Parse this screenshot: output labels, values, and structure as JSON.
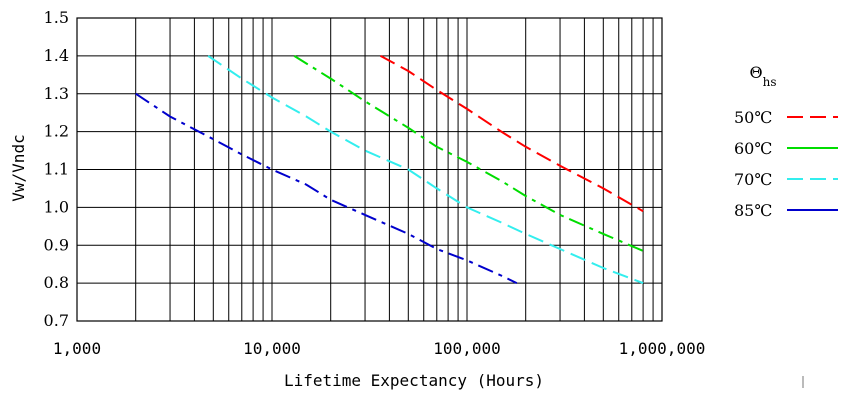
{
  "chart_data": {
    "type": "line",
    "xlabel": "Lifetime Expectancy (Hours)",
    "ylabel": "Vw/Vndc",
    "x_scale": "log",
    "xlim": [
      1000,
      1000000
    ],
    "ylim": [
      0.7,
      1.5
    ],
    "x_ticks": [
      1000,
      10000,
      100000,
      1000000
    ],
    "x_tick_labels": [
      "1,000",
      "10,000",
      "100,000",
      "1,000,000"
    ],
    "y_ticks": [
      0.7,
      0.8,
      0.9,
      1.0,
      1.1,
      1.2,
      1.3,
      1.4,
      1.5
    ],
    "y_tick_labels": [
      "0.7",
      "0.8",
      "0.9",
      "1.0",
      "1.1",
      "1.2",
      "1.3",
      "1.4",
      "1.5"
    ],
    "grid": true,
    "legend_title": "Θ",
    "legend_title_sub": "hs",
    "legend_position": "right",
    "series": [
      {
        "name": "50℃",
        "color": "#ff0000",
        "dash": "dashed",
        "x": [
          36000,
          50000,
          70000,
          100000,
          150000,
          200000,
          300000,
          500000,
          800000
        ],
        "y": [
          1.4,
          1.36,
          1.31,
          1.26,
          1.2,
          1.16,
          1.11,
          1.05,
          0.99
        ]
      },
      {
        "name": "60℃",
        "color": "#00dd00",
        "dash": "dashdot",
        "x": [
          13000,
          20000,
          30000,
          50000,
          70000,
          100000,
          150000,
          200000,
          300000,
          500000,
          800000
        ],
        "y": [
          1.4,
          1.34,
          1.28,
          1.21,
          1.16,
          1.12,
          1.07,
          1.03,
          0.98,
          0.93,
          0.885
        ]
      },
      {
        "name": "70℃",
        "color": "#33eeee",
        "dash": "dashed",
        "x": [
          4700,
          7000,
          10000,
          15000,
          20000,
          30000,
          50000,
          70000,
          100000,
          150000,
          200000,
          300000,
          500000,
          800000
        ],
        "y": [
          1.4,
          1.34,
          1.29,
          1.24,
          1.2,
          1.15,
          1.1,
          1.05,
          1.0,
          0.96,
          0.93,
          0.89,
          0.84,
          0.8
        ]
      },
      {
        "name": "85℃",
        "color": "#0000cc",
        "dash": "dashdot",
        "x": [
          2000,
          3000,
          5000,
          7000,
          10000,
          15000,
          20000,
          30000,
          50000,
          70000,
          100000,
          150000,
          180000
        ],
        "y": [
          1.3,
          1.24,
          1.18,
          1.14,
          1.1,
          1.06,
          1.02,
          0.98,
          0.93,
          0.89,
          0.86,
          0.82,
          0.8
        ]
      }
    ]
  }
}
